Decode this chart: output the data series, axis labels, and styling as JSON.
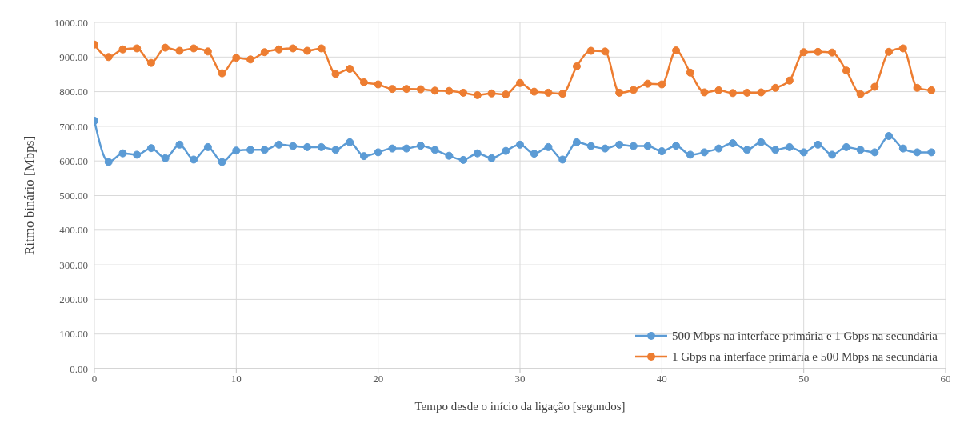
{
  "chart_data": {
    "type": "line",
    "xlabel": "Tempo desde o início da ligação [segundos]",
    "ylabel": "Ritmo binário [Mbps]",
    "x": [
      0,
      1,
      2,
      3,
      4,
      5,
      6,
      7,
      8,
      9,
      10,
      11,
      12,
      13,
      14,
      15,
      16,
      17,
      18,
      19,
      20,
      21,
      22,
      23,
      24,
      25,
      26,
      27,
      28,
      29,
      30,
      31,
      32,
      33,
      34,
      35,
      36,
      37,
      38,
      39,
      40,
      41,
      42,
      43,
      44,
      45,
      46,
      47,
      48,
      49,
      50,
      51,
      52,
      53,
      54,
      55,
      56,
      57,
      58,
      59
    ],
    "series": [
      {
        "name": "500 Mbps na interface primária e 1 Gbps na secundária",
        "color": "#5b9bd5",
        "values": [
          716,
          597,
          622,
          618,
          637,
          608,
          647,
          604,
          640,
          597,
          630,
          632,
          632,
          647,
          643,
          640,
          640,
          632,
          654,
          614,
          625,
          636,
          636,
          644,
          632,
          615,
          603,
          622,
          608,
          629,
          647,
          621,
          640,
          604,
          654,
          643,
          636,
          647,
          643,
          643,
          628,
          644,
          618,
          625,
          636,
          651,
          632,
          654,
          632,
          640,
          625,
          647,
          618,
          640,
          632,
          625,
          672,
          636,
          625,
          625
        ]
      },
      {
        "name": "1 Gbps na interface primária e 500 Mbps na secundária",
        "color": "#ed7d31",
        "values": [
          936,
          900,
          922,
          925,
          883,
          927,
          918,
          925,
          916,
          853,
          898,
          893,
          914,
          922,
          925,
          918,
          925,
          851,
          866,
          827,
          821,
          808,
          808,
          807,
          803,
          802,
          797,
          790,
          795,
          792,
          825,
          800,
          797,
          794,
          873,
          918,
          916,
          797,
          805,
          823,
          821,
          919,
          855,
          798,
          804,
          796,
          797,
          798,
          811,
          832,
          914,
          915,
          913,
          861,
          793,
          814,
          915,
          925,
          811,
          804
        ]
      }
    ],
    "xlim": [
      0,
      60
    ],
    "xticks": [
      0,
      10,
      20,
      30,
      40,
      50,
      60
    ],
    "ylim": [
      0,
      1000
    ],
    "yticks": [
      {
        "value": 0,
        "label": "0.00"
      },
      {
        "value": 100,
        "label": "100.00"
      },
      {
        "value": 200,
        "label": "200.00"
      },
      {
        "value": 300,
        "label": "300.00"
      },
      {
        "value": 400,
        "label": "400.00"
      },
      {
        "value": 500,
        "label": "500.00"
      },
      {
        "value": 600,
        "label": "600.00"
      },
      {
        "value": 700,
        "label": "700.00"
      },
      {
        "value": 800,
        "label": "800.00"
      },
      {
        "value": 900,
        "label": "900.00"
      },
      {
        "value": 1000,
        "label": "1000.00"
      }
    ],
    "grid": true,
    "legend": "bottom right",
    "marker": "circle",
    "line_style": "solid"
  }
}
